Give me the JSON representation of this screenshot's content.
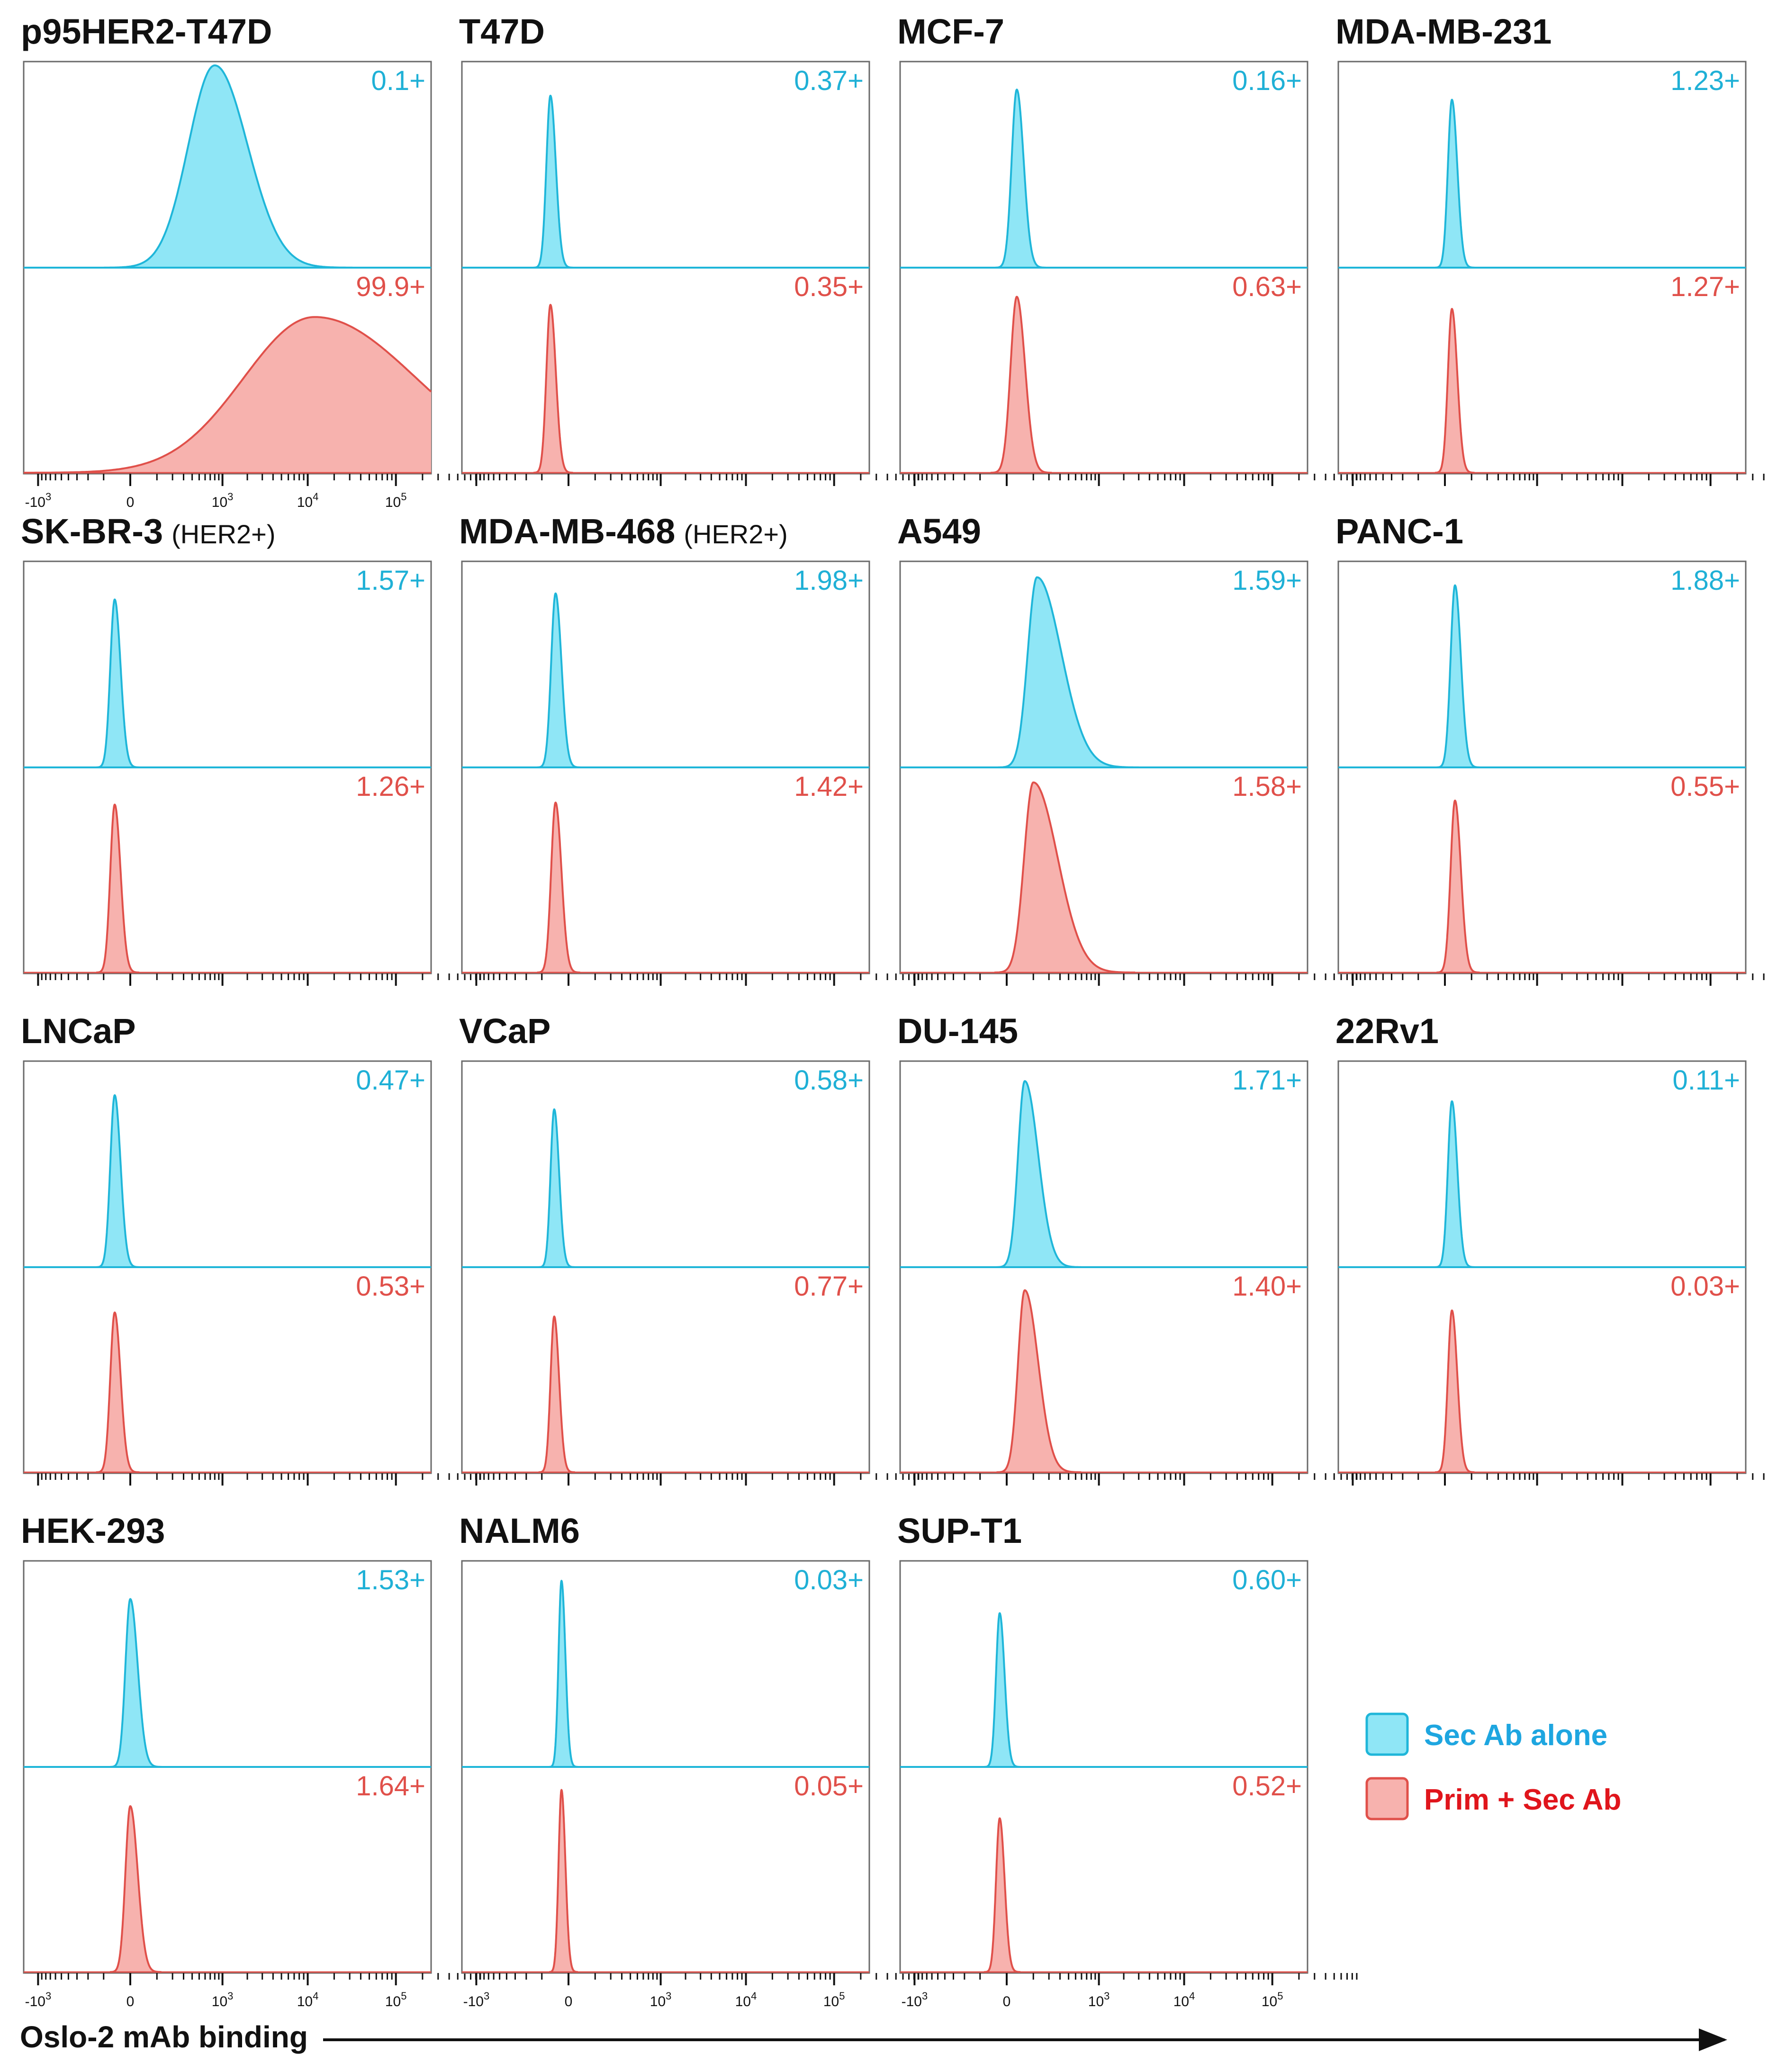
{
  "colors": {
    "sec_stroke": "#1fb6d9",
    "sec_fill": "#8fe6f6",
    "prim_stroke": "#e0504a",
    "prim_fill": "#f7b2ae",
    "sec_text": "#1fb0d6",
    "prim_text": "#e0504a",
    "legend_sec_text": "#1ea6e0",
    "legend_prim_text": "#e0151c"
  },
  "x_axis": {
    "title": "Oslo-2 mAb binding",
    "tick_labels": [
      {
        "base": "-10",
        "exp": "3",
        "value": -1000
      },
      {
        "base": "0",
        "exp": "",
        "value": 0
      },
      {
        "base": "10",
        "exp": "3",
        "value": 1000
      },
      {
        "base": "10",
        "exp": "4",
        "value": 10000
      },
      {
        "base": "10",
        "exp": "5",
        "value": 100000
      }
    ]
  },
  "legend": [
    {
      "label": "Sec Ab alone",
      "series": "sec"
    },
    {
      "label": "Prim + Sec Ab",
      "series": "prim"
    }
  ],
  "chart_data": {
    "type": "area",
    "x_scale": "biexponential",
    "xlim": [
      -1500,
      250000
    ],
    "legend_position": "bottom-right",
    "panels": [
      {
        "title": "p95HER2-T47D",
        "subtitle": "",
        "show_tick_labels": true,
        "sec": {
          "label": "0.1+",
          "peak_x": 800,
          "peak_height": 1.0,
          "width": 0.07,
          "skew": 0.15
        },
        "prim": {
          "label": "99.9+",
          "peak_x": 12000,
          "peak_height": 0.77,
          "width": 0.2,
          "skew": 0.25
        }
      },
      {
        "title": "T47D",
        "subtitle": "",
        "show_tick_labels": false,
        "sec": {
          "label": "0.37+",
          "peak_x": -60,
          "peak_height": 0.85,
          "width": 0.011,
          "skew": 0.2
        },
        "prim": {
          "label": "0.35+",
          "peak_x": -60,
          "peak_height": 0.83,
          "width": 0.011,
          "skew": 0.2
        }
      },
      {
        "title": "MCF-7",
        "subtitle": "",
        "show_tick_labels": false,
        "sec": {
          "label": "0.16+",
          "peak_x": 30,
          "peak_height": 0.88,
          "width": 0.014,
          "skew": 0.2
        },
        "prim": {
          "label": "0.63+",
          "peak_x": 30,
          "peak_height": 0.87,
          "width": 0.017,
          "skew": 0.2
        }
      },
      {
        "title": "MDA-MB-231",
        "subtitle": "",
        "show_tick_labels": false,
        "sec": {
          "label": "1.23+",
          "peak_x": 20,
          "peak_height": 0.83,
          "width": 0.011,
          "skew": 0.2
        },
        "prim": {
          "label": "1.27+",
          "peak_x": 20,
          "peak_height": 0.81,
          "width": 0.011,
          "skew": 0.2
        }
      },
      {
        "title": "SK-BR-3",
        "subtitle": "(HER2+)",
        "show_tick_labels": false,
        "sec": {
          "label": "1.57+",
          "peak_x": -50,
          "peak_height": 0.83,
          "width": 0.012,
          "skew": 0.2
        },
        "prim": {
          "label": "1.26+",
          "peak_x": -50,
          "peak_height": 0.83,
          "width": 0.012,
          "skew": 0.2
        }
      },
      {
        "title": "MDA-MB-468",
        "subtitle": "(HER2+)",
        "show_tick_labels": false,
        "sec": {
          "label": "1.98+",
          "peak_x": -40,
          "peak_height": 0.86,
          "width": 0.012,
          "skew": 0.2
        },
        "prim": {
          "label": "1.42+",
          "peak_x": -40,
          "peak_height": 0.84,
          "width": 0.012,
          "skew": 0.2
        }
      },
      {
        "title": "A549",
        "subtitle": "",
        "show_tick_labels": false,
        "sec": {
          "label": "1.59+",
          "peak_x": 120,
          "peak_height": 0.94,
          "width": 0.035,
          "skew": 0.7
        },
        "prim": {
          "label": "1.58+",
          "peak_x": 100,
          "peak_height": 0.94,
          "width": 0.035,
          "skew": 0.7
        }
      },
      {
        "title": "PANC-1",
        "subtitle": "",
        "show_tick_labels": false,
        "sec": {
          "label": "1.88+",
          "peak_x": 30,
          "peak_height": 0.9,
          "width": 0.012,
          "skew": 0.2
        },
        "prim": {
          "label": "0.55+",
          "peak_x": 30,
          "peak_height": 0.85,
          "width": 0.012,
          "skew": 0.2
        }
      },
      {
        "title": "LNCaP",
        "subtitle": "",
        "show_tick_labels": false,
        "sec": {
          "label": "0.47+",
          "peak_x": -50,
          "peak_height": 0.85,
          "width": 0.012,
          "skew": 0.2
        },
        "prim": {
          "label": "0.53+",
          "peak_x": -50,
          "peak_height": 0.79,
          "width": 0.012,
          "skew": 0.2
        }
      },
      {
        "title": "VCaP",
        "subtitle": "",
        "show_tick_labels": false,
        "sec": {
          "label": "0.58+",
          "peak_x": -45,
          "peak_height": 0.78,
          "width": 0.01,
          "skew": 0.2
        },
        "prim": {
          "label": "0.77+",
          "peak_x": -45,
          "peak_height": 0.77,
          "width": 0.01,
          "skew": 0.2
        }
      },
      {
        "title": "DU-145",
        "subtitle": "",
        "show_tick_labels": false,
        "sec": {
          "label": "1.71+",
          "peak_x": 60,
          "peak_height": 0.92,
          "width": 0.022,
          "skew": 0.5
        },
        "prim": {
          "label": "1.40+",
          "peak_x": 60,
          "peak_height": 0.9,
          "width": 0.022,
          "skew": 0.5
        }
      },
      {
        "title": "22Rv1",
        "subtitle": "",
        "show_tick_labels": false,
        "sec": {
          "label": "0.11+",
          "peak_x": 20,
          "peak_height": 0.82,
          "width": 0.011,
          "skew": 0.2
        },
        "prim": {
          "label": "0.03+",
          "peak_x": 20,
          "peak_height": 0.8,
          "width": 0.011,
          "skew": 0.2
        }
      },
      {
        "title": "HEK-293",
        "subtitle": "",
        "show_tick_labels": true,
        "sec": {
          "label": "1.53+",
          "peak_x": 0,
          "peak_height": 0.83,
          "width": 0.014,
          "skew": 0.3
        },
        "prim": {
          "label": "1.64+",
          "peak_x": 0,
          "peak_height": 0.82,
          "width": 0.014,
          "skew": 0.3
        }
      },
      {
        "title": "NALM6",
        "subtitle": "",
        "show_tick_labels": true,
        "sec": {
          "label": "0.03+",
          "peak_x": -20,
          "peak_height": 0.92,
          "width": 0.008,
          "skew": 0.2
        },
        "prim": {
          "label": "0.05+",
          "peak_x": -20,
          "peak_height": 0.9,
          "width": 0.008,
          "skew": 0.2
        }
      },
      {
        "title": "SUP-T1",
        "subtitle": "",
        "show_tick_labels": true,
        "sec": {
          "label": "0.60+",
          "peak_x": -20,
          "peak_height": 0.76,
          "width": 0.01,
          "skew": 0.2
        },
        "prim": {
          "label": "0.52+",
          "peak_x": -20,
          "peak_height": 0.76,
          "width": 0.01,
          "skew": 0.2
        }
      }
    ]
  }
}
